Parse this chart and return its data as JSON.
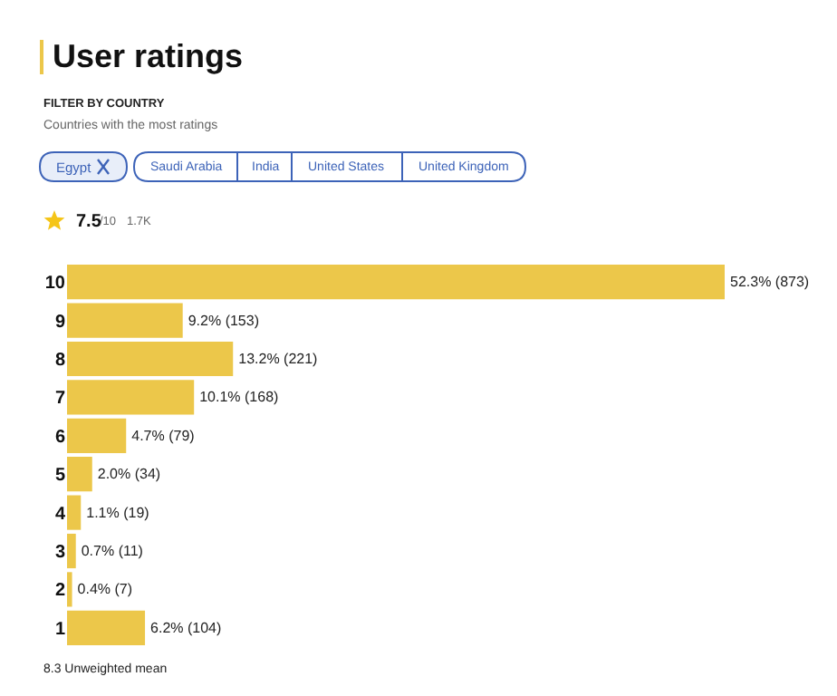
{
  "chart_data": {
    "type": "bar",
    "orientation": "horizontal",
    "title": "User ratings",
    "subtitle": "FILTER BY COUNTRY",
    "annotations": [
      "Countries with the most ratings",
      "Egypt",
      "Saudi Arabia",
      "India",
      "United States",
      "United Kingdom",
      "7.5",
      "/10",
      "1.7K",
      "8.3 Unweighted mean"
    ],
    "categories": [
      "10",
      "9",
      "8",
      "7",
      "6",
      "5",
      "4",
      "3",
      "2",
      "1"
    ],
    "values": [
      52.3,
      9.2,
      13.2,
      10.1,
      4.7,
      2.0,
      1.1,
      0.7,
      0.4,
      6.2
    ],
    "value_labels": [
      "52.3% (873)",
      "9.2% (153)",
      "13.2% (221)",
      "10.1% (168)",
      "4.7% (79)",
      "2.0% (34)",
      "1.1% (19)",
      "0.7% (11)",
      "0.4% (7)",
      "6.2% (104)"
    ],
    "color": "#ecc74a"
  }
}
